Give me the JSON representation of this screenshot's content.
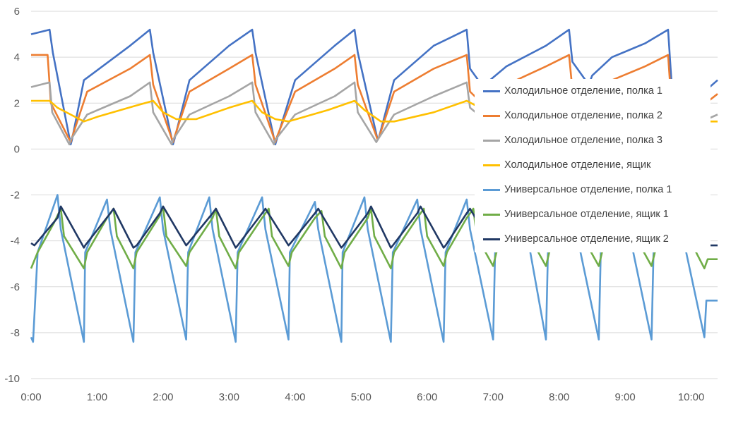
{
  "chart_data": {
    "type": "line",
    "title": "",
    "xlabel": "",
    "ylabel": "",
    "ylim": [
      -10,
      6
    ],
    "xlim_hours": [
      0,
      10.4
    ],
    "yticks": [
      -10,
      -8,
      -6,
      -4,
      -2,
      0,
      2,
      4,
      6
    ],
    "ytick_labels": [
      "-10",
      "-8",
      "-6",
      "-4",
      "-2",
      "0",
      "2",
      "4",
      "6"
    ],
    "xticks": [
      0,
      1,
      2,
      3,
      4,
      5,
      6,
      7,
      8,
      9,
      10
    ],
    "xtick_labels": [
      "0:00",
      "1:00",
      "2:00",
      "3:00",
      "4:00",
      "5:00",
      "6:00",
      "7:00",
      "8:00",
      "9:00",
      "10:00"
    ],
    "grid": "horizontal",
    "legend_position": "right-overlapping",
    "series": [
      {
        "name": "Холодильное отделение, полка 1",
        "color": "#4472C4",
        "x": [
          0,
          0.28,
          0.33,
          0.6,
          0.62,
          0.8,
          1.5,
          1.8,
          1.85,
          2.15,
          2.17,
          2.4,
          3.0,
          3.35,
          3.4,
          3.7,
          3.72,
          4.0,
          4.6,
          4.9,
          4.95,
          5.25,
          5.27,
          5.5,
          6.1,
          6.6,
          6.65,
          6.9,
          6.95,
          7.2,
          7.8,
          8.15,
          8.2,
          8.45,
          8.5,
          8.8,
          9.3,
          9.65,
          9.7,
          9.95,
          10.0,
          10.4
        ],
        "values": [
          5.0,
          5.2,
          4.2,
          0.2,
          0.4,
          3.0,
          4.5,
          5.2,
          4.2,
          0.2,
          0.4,
          3.0,
          4.5,
          5.2,
          4.2,
          0.2,
          0.4,
          3.0,
          4.5,
          5.2,
          4.2,
          0.4,
          0.5,
          3.0,
          4.5,
          5.2,
          3.5,
          2.5,
          3.0,
          3.6,
          4.5,
          5.2,
          3.8,
          2.8,
          3.2,
          4.0,
          4.6,
          5.2,
          3.0,
          1.0,
          2.0,
          3.0
        ]
      },
      {
        "name": "Холодильное отделение, полка 2",
        "color": "#ED7D31",
        "x": [
          0,
          0.25,
          0.3,
          0.6,
          0.62,
          0.85,
          1.5,
          1.8,
          1.85,
          2.15,
          2.17,
          2.4,
          3.0,
          3.35,
          3.4,
          3.7,
          3.72,
          4.0,
          4.6,
          4.9,
          4.95,
          5.25,
          5.27,
          5.5,
          6.1,
          6.6,
          6.65,
          6.9,
          6.95,
          7.2,
          7.8,
          8.15,
          8.2,
          8.45,
          8.5,
          8.8,
          9.3,
          9.65,
          9.7,
          9.95,
          10.0,
          10.4
        ],
        "values": [
          4.1,
          4.1,
          2.0,
          0.3,
          0.5,
          2.5,
          3.5,
          4.1,
          2.8,
          0.3,
          0.5,
          2.5,
          3.5,
          4.1,
          2.8,
          0.3,
          0.5,
          2.5,
          3.5,
          4.1,
          2.8,
          0.4,
          0.5,
          2.5,
          3.5,
          4.1,
          2.5,
          1.8,
          2.2,
          2.8,
          3.6,
          4.1,
          2.6,
          1.8,
          2.2,
          3.0,
          3.6,
          4.1,
          2.0,
          0.8,
          1.5,
          2.4
        ]
      },
      {
        "name": "Холодильное отделение, полка 3",
        "color": "#A5A5A5",
        "x": [
          0,
          0.28,
          0.32,
          0.58,
          0.6,
          0.85,
          1.5,
          1.8,
          1.85,
          2.13,
          2.15,
          2.4,
          3.0,
          3.35,
          3.4,
          3.68,
          3.7,
          4.0,
          4.6,
          4.9,
          4.95,
          5.23,
          5.25,
          5.5,
          6.1,
          6.6,
          6.65,
          6.9,
          6.95,
          7.2,
          7.8,
          8.15,
          8.2,
          8.45,
          8.5,
          8.8,
          9.3,
          9.65,
          9.7,
          9.95,
          10.0,
          10.4
        ],
        "values": [
          2.7,
          2.9,
          1.6,
          0.2,
          0.4,
          1.5,
          2.3,
          2.9,
          1.6,
          0.2,
          0.4,
          1.5,
          2.3,
          2.9,
          1.6,
          0.2,
          0.4,
          1.5,
          2.3,
          2.9,
          1.6,
          0.3,
          0.4,
          1.5,
          2.3,
          2.9,
          1.8,
          1.2,
          1.4,
          1.8,
          2.3,
          2.9,
          1.8,
          1.1,
          1.3,
          1.8,
          2.3,
          2.9,
          1.8,
          0.6,
          1.0,
          1.5
        ]
      },
      {
        "name": "Холодильное отделение, ящик",
        "color": "#FFC000",
        "x": [
          0,
          0.28,
          0.4,
          0.6,
          0.8,
          1.0,
          1.6,
          1.85,
          2.0,
          2.2,
          2.5,
          3.0,
          3.35,
          3.5,
          3.7,
          3.9,
          4.5,
          4.9,
          5.05,
          5.3,
          5.5,
          6.1,
          6.6,
          6.8,
          7.0,
          7.5,
          8.2,
          8.4,
          8.6,
          9.0,
          9.65,
          9.8,
          10.0,
          10.4
        ],
        "values": [
          2.1,
          2.1,
          1.8,
          1.5,
          1.2,
          1.4,
          1.9,
          2.1,
          1.6,
          1.3,
          1.3,
          1.8,
          2.1,
          1.6,
          1.3,
          1.2,
          1.7,
          2.1,
          1.7,
          1.2,
          1.2,
          1.6,
          2.1,
          1.8,
          1.5,
          1.6,
          2.1,
          1.8,
          1.5,
          1.5,
          2.1,
          1.7,
          1.2,
          1.2
        ]
      },
      {
        "name": "Универсальное отделение, полка 1",
        "color": "#5B9BD5",
        "x": [
          0,
          0.03,
          0.1,
          0.4,
          0.45,
          0.8,
          0.82,
          1.15,
          1.2,
          1.55,
          1.58,
          1.95,
          2.0,
          2.35,
          2.38,
          2.7,
          2.75,
          3.1,
          3.13,
          3.5,
          3.55,
          3.9,
          3.92,
          4.3,
          4.35,
          4.7,
          4.72,
          5.05,
          5.1,
          5.45,
          5.48,
          5.85,
          5.9,
          6.25,
          6.28,
          6.6,
          6.65,
          7.0,
          7.03,
          7.45,
          7.5,
          7.8,
          7.83,
          8.2,
          8.25,
          8.6,
          8.63,
          9.0,
          9.05,
          9.4,
          9.43,
          9.8,
          9.85,
          10.2,
          10.23,
          10.4
        ],
        "values": [
          -8.2,
          -8.4,
          -4.5,
          -2.0,
          -3.5,
          -8.4,
          -4.5,
          -2.2,
          -3.5,
          -8.4,
          -4.5,
          -2.1,
          -3.5,
          -8.3,
          -4.5,
          -2.1,
          -3.5,
          -8.4,
          -4.5,
          -2.1,
          -3.5,
          -8.3,
          -4.5,
          -2.3,
          -3.5,
          -8.4,
          -4.5,
          -2.1,
          -3.5,
          -8.4,
          -4.5,
          -2.2,
          -3.5,
          -8.4,
          -4.5,
          -2.2,
          -3.5,
          -8.3,
          -4.5,
          -2.2,
          -3.5,
          -8.3,
          -4.5,
          -2.2,
          -3.5,
          -8.3,
          -4.5,
          -2.2,
          -3.5,
          -8.3,
          -4.5,
          -2.2,
          -3.5,
          -8.2,
          -6.6,
          -6.6
        ]
      },
      {
        "name": "Универсальное отделение, ящик 1",
        "color": "#70AD47",
        "x": [
          0,
          0.1,
          0.35,
          0.45,
          0.5,
          0.8,
          0.85,
          1.15,
          1.25,
          1.3,
          1.55,
          1.6,
          1.95,
          2.0,
          2.05,
          2.35,
          2.4,
          2.75,
          2.8,
          2.85,
          3.1,
          3.15,
          3.5,
          3.6,
          3.65,
          3.9,
          3.95,
          4.3,
          4.4,
          4.45,
          4.7,
          4.75,
          5.1,
          5.15,
          5.2,
          5.45,
          5.5,
          5.85,
          5.95,
          6.0,
          6.25,
          6.3,
          6.6,
          6.7,
          6.75,
          7.0,
          7.05,
          7.45,
          7.5,
          7.55,
          7.8,
          7.85,
          8.2,
          8.3,
          8.35,
          8.6,
          8.65,
          9.0,
          9.1,
          9.15,
          9.4,
          9.45,
          9.8,
          9.9,
          9.95,
          10.2,
          10.25,
          10.4
        ],
        "values": [
          -5.2,
          -4.5,
          -3.2,
          -2.6,
          -3.8,
          -5.2,
          -4.5,
          -3.0,
          -2.6,
          -3.8,
          -5.2,
          -4.5,
          -2.9,
          -2.5,
          -3.8,
          -5.1,
          -4.5,
          -3.0,
          -2.6,
          -3.8,
          -5.2,
          -4.5,
          -3.0,
          -2.6,
          -3.8,
          -5.1,
          -4.5,
          -3.0,
          -2.7,
          -3.8,
          -5.2,
          -4.5,
          -3.0,
          -2.6,
          -3.8,
          -5.2,
          -4.5,
          -3.0,
          -2.6,
          -3.8,
          -5.1,
          -4.5,
          -3.0,
          -2.6,
          -3.8,
          -5.1,
          -4.5,
          -3.0,
          -2.6,
          -3.8,
          -5.1,
          -4.5,
          -3.0,
          -2.6,
          -3.8,
          -5.1,
          -4.5,
          -3.0,
          -2.6,
          -3.8,
          -5.1,
          -4.5,
          -3.0,
          -2.6,
          -3.8,
          -5.2,
          -4.8,
          -4.8
        ]
      },
      {
        "name": "Универсальное отделение, ящик 2",
        "color": "#203864",
        "x": [
          0,
          0.05,
          0.4,
          0.45,
          0.8,
          0.82,
          1.2,
          1.25,
          1.55,
          1.6,
          1.95,
          2.0,
          2.35,
          2.38,
          2.75,
          2.8,
          3.1,
          3.13,
          3.5,
          3.55,
          3.9,
          3.93,
          4.3,
          4.35,
          4.7,
          4.73,
          5.1,
          5.15,
          5.45,
          5.48,
          5.85,
          5.9,
          6.25,
          6.28,
          6.6,
          6.65,
          7.0,
          7.03,
          7.45,
          7.5,
          7.8,
          7.83,
          8.2,
          8.25,
          8.6,
          8.63,
          9.0,
          9.05,
          9.4,
          9.43,
          9.8,
          9.85,
          10.2,
          10.25,
          10.4
        ],
        "values": [
          -4.1,
          -4.2,
          -3.0,
          -2.5,
          -4.3,
          -4.2,
          -2.8,
          -2.6,
          -4.3,
          -4.2,
          -2.8,
          -2.5,
          -4.2,
          -4.1,
          -2.8,
          -2.6,
          -4.3,
          -4.2,
          -2.8,
          -2.6,
          -4.2,
          -4.1,
          -2.8,
          -2.6,
          -4.3,
          -4.2,
          -2.8,
          -2.5,
          -4.3,
          -4.2,
          -2.8,
          -2.5,
          -4.3,
          -4.2,
          -2.8,
          -2.6,
          -4.3,
          -4.2,
          -2.8,
          -2.6,
          -4.2,
          -4.1,
          -2.8,
          -2.6,
          -4.2,
          -4.1,
          -2.8,
          -2.6,
          -4.2,
          -4.1,
          -2.8,
          -2.6,
          -4.1,
          -4.2,
          -4.2
        ]
      }
    ]
  }
}
